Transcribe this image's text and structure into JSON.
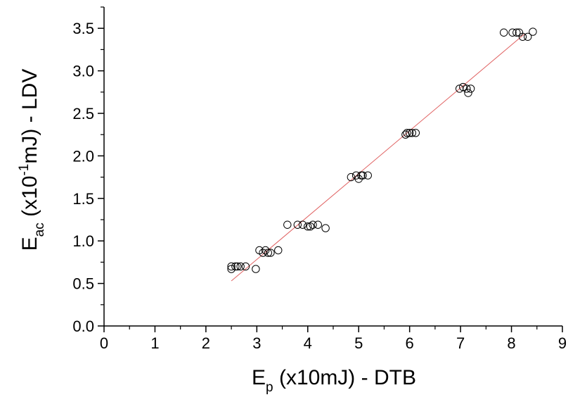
{
  "chart_data": {
    "type": "scatter",
    "title": "",
    "xlabel": {
      "main": "E",
      "sub": "p",
      "rest": " (x10mJ) - DTB"
    },
    "ylabel": {
      "main": "E",
      "sub": "ac",
      "pre": " (x10",
      "sup": "-1",
      "post": "mJ) - LDV"
    },
    "xlim": [
      0,
      9
    ],
    "ylim": [
      0,
      3.75
    ],
    "xticks": [
      0,
      1,
      2,
      3,
      4,
      5,
      6,
      7,
      8,
      9
    ],
    "xtick_labels": [
      "0",
      "1",
      "2",
      "3",
      "4",
      "5",
      "6",
      "7",
      "8",
      "9"
    ],
    "yticks": [
      0.0,
      0.5,
      1.0,
      1.5,
      2.0,
      2.5,
      3.0,
      3.5
    ],
    "ytick_labels": [
      "0.0",
      "0.5",
      "1.0",
      "1.5",
      "2.0",
      "2.5",
      "3.0",
      "3.5"
    ],
    "grid": false,
    "marker": "open-circle",
    "fit_line": {
      "x": [
        2.5,
        8.25
      ],
      "y": [
        0.53,
        3.43
      ],
      "color": "#e06060"
    },
    "points": [
      [
        2.5,
        0.67
      ],
      [
        2.5,
        0.7
      ],
      [
        2.58,
        0.7
      ],
      [
        2.62,
        0.7
      ],
      [
        2.68,
        0.7
      ],
      [
        2.78,
        0.7
      ],
      [
        2.98,
        0.67
      ],
      [
        3.05,
        0.89
      ],
      [
        3.12,
        0.86
      ],
      [
        3.17,
        0.89
      ],
      [
        3.22,
        0.86
      ],
      [
        3.27,
        0.86
      ],
      [
        3.42,
        0.89
      ],
      [
        3.6,
        1.19
      ],
      [
        3.8,
        1.19
      ],
      [
        3.9,
        1.19
      ],
      [
        4.0,
        1.17
      ],
      [
        4.05,
        1.17
      ],
      [
        4.1,
        1.19
      ],
      [
        4.2,
        1.19
      ],
      [
        4.35,
        1.15
      ],
      [
        4.85,
        1.75
      ],
      [
        4.95,
        1.77
      ],
      [
        5.0,
        1.73
      ],
      [
        5.05,
        1.77
      ],
      [
        5.08,
        1.77
      ],
      [
        5.18,
        1.77
      ],
      [
        5.92,
        2.25
      ],
      [
        5.95,
        2.27
      ],
      [
        6.0,
        2.27
      ],
      [
        6.05,
        2.27
      ],
      [
        6.12,
        2.27
      ],
      [
        6.98,
        2.79
      ],
      [
        7.05,
        2.81
      ],
      [
        7.12,
        2.79
      ],
      [
        7.15,
        2.74
      ],
      [
        7.2,
        2.79
      ],
      [
        7.85,
        3.45
      ],
      [
        8.02,
        3.45
      ],
      [
        8.1,
        3.45
      ],
      [
        8.15,
        3.45
      ],
      [
        8.22,
        3.4
      ],
      [
        8.32,
        3.4
      ],
      [
        8.42,
        3.46
      ]
    ]
  }
}
